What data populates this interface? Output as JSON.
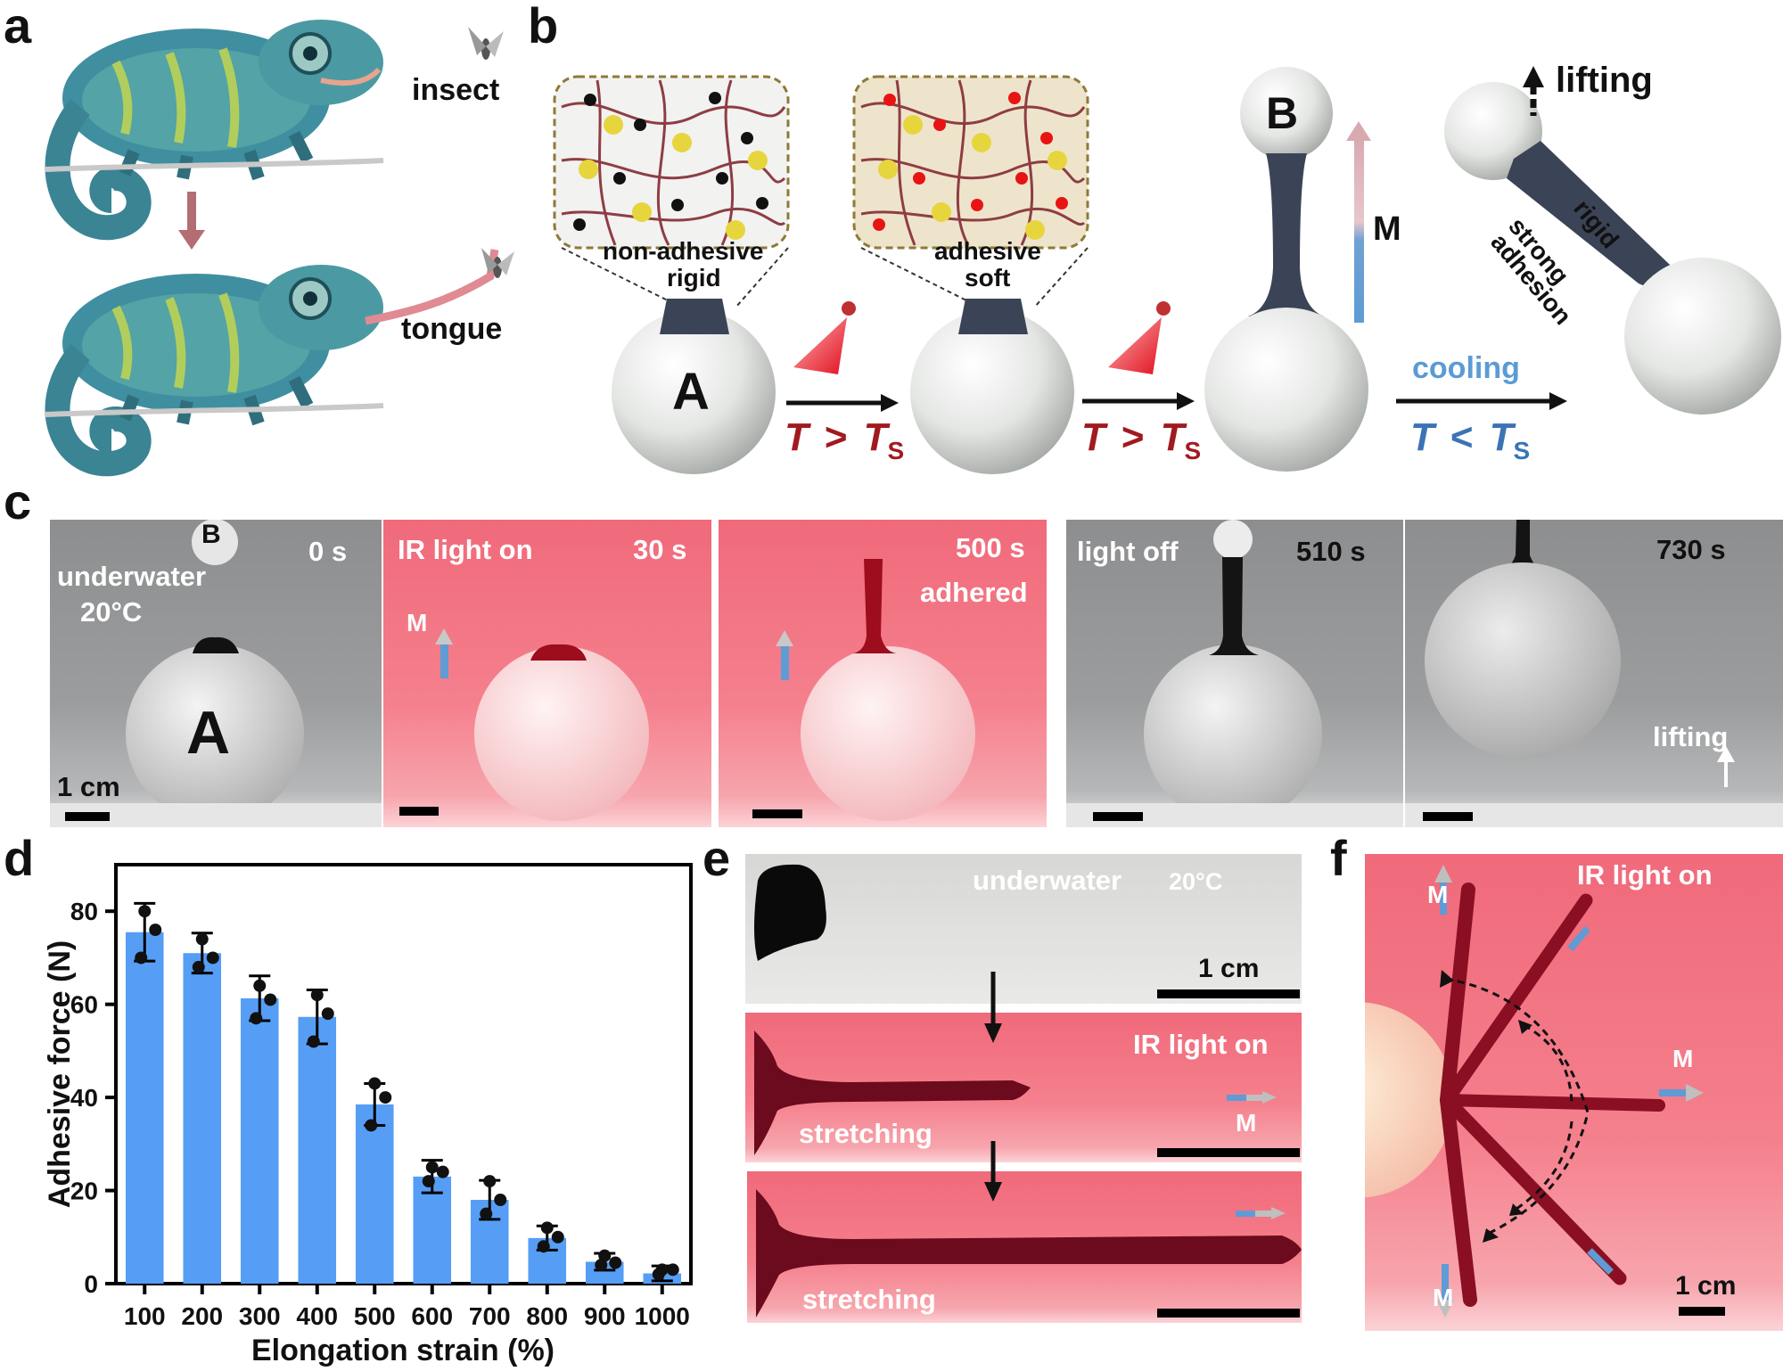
{
  "panels": {
    "a": "a",
    "b": "b",
    "c": "c",
    "d": "d",
    "e": "e",
    "f": "f"
  },
  "a": {
    "insect": "insect",
    "tongue": "tongue"
  },
  "b": {
    "inset1_l1": "non-adhesive",
    "inset1_l2": "rigid",
    "inset2_l1": "adhesive",
    "inset2_l2": "soft",
    "ball_a": "A",
    "ball_b": "B",
    "m": "M",
    "cond1_T": "T",
    "cond1_op": ">",
    "cond1_Ts": "T",
    "cond1_sub": "S",
    "cond2_T": "T",
    "cond2_op": ">",
    "cond2_Ts": "T",
    "cond2_sub": "S",
    "cooling": "cooling",
    "cond3_T": "T",
    "cond3_op": "<",
    "cond3_Ts": "T",
    "cond3_sub": "S",
    "lifting": "lifting",
    "rigid": "rigid",
    "strong": "strong",
    "adhesion": "adhesion"
  },
  "c": {
    "frames": [
      {
        "time": "0 s",
        "tl1": "underwater",
        "tl2": "20°C",
        "b": "B",
        "a": "A",
        "scale": "1 cm"
      },
      {
        "time": "30 s",
        "tl1": "IR light on",
        "m": "M"
      },
      {
        "time": "500 s",
        "tl2": "adhered"
      },
      {
        "time": "510 s",
        "tl1": "light off"
      },
      {
        "time": "730 s",
        "lifting": "lifting"
      }
    ]
  },
  "chart_data": {
    "type": "bar",
    "title": "",
    "xlabel": "Elongation strain (%)",
    "ylabel": "Adhesive force (N)",
    "ylim": [
      0,
      90
    ],
    "yticks": [
      0,
      20,
      40,
      60,
      80
    ],
    "categories": [
      "100",
      "200",
      "300",
      "400",
      "500",
      "600",
      "700",
      "800",
      "900",
      "1000"
    ],
    "values": [
      75.5,
      71,
      61.3,
      57.3,
      38.5,
      23,
      18,
      9.8,
      4.7,
      2.2
    ],
    "err": [
      6.2,
      4.3,
      4.8,
      5.8,
      4.5,
      3.5,
      4.2,
      2.6,
      1.8,
      1.6
    ],
    "points": [
      [
        80,
        76,
        70
      ],
      [
        74,
        70,
        68
      ],
      [
        64,
        61,
        57
      ],
      [
        62,
        58,
        52
      ],
      [
        43,
        40,
        34
      ],
      [
        25,
        24,
        22
      ],
      [
        22,
        18,
        15
      ],
      [
        12,
        10,
        8
      ],
      [
        6,
        4.5,
        4
      ],
      [
        3,
        3,
        2
      ]
    ],
    "bar_color": "#569ef5"
  },
  "e": {
    "top_label": "underwater",
    "top_temp": "20°C",
    "scale": "1 cm",
    "mid_label": "IR light on",
    "mid_m": "M",
    "mid_stretch": "stretching",
    "bot_stretch": "stretching"
  },
  "f": {
    "ir": "IR light on",
    "m1": "M",
    "m2": "M",
    "m3": "M",
    "scale": "1 cm"
  }
}
